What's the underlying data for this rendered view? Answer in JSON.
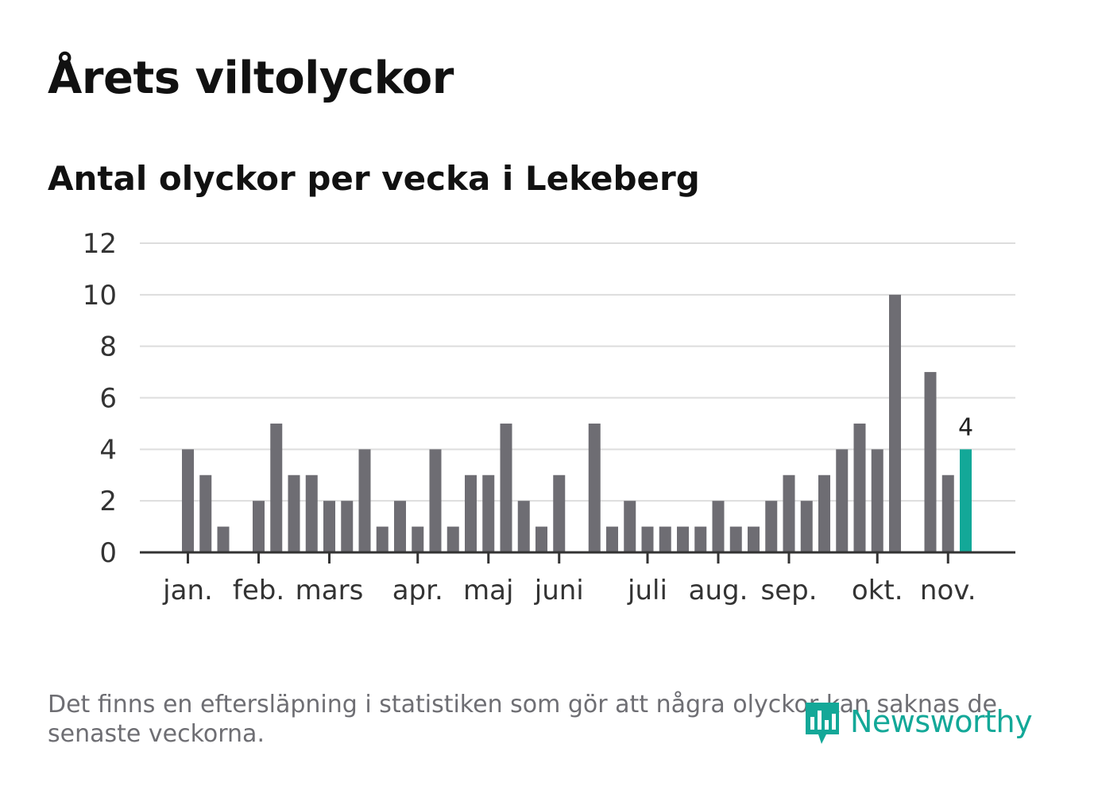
{
  "title": "Årets viltolyckor",
  "subtitle": "Antal olyckor per vecka i Lekeberg",
  "note": "Det finns en eftersläpning i statistiken som gör att några olyckor kan saknas de senaste veckorna.",
  "brand": {
    "name": "Newsworthy",
    "icon": "newsworthy-logo-icon"
  },
  "colors": {
    "bar": "#6e6d73",
    "highlight": "#13a898",
    "grid": "#dddddd",
    "axis": "#333333",
    "text": "#333333"
  },
  "chart_data": {
    "type": "bar",
    "title": "Antal olyckor per vecka i Lekeberg",
    "xlabel": "",
    "ylabel": "",
    "ylim": [
      0,
      12
    ],
    "yticks": [
      0,
      2,
      4,
      6,
      8,
      10,
      12
    ],
    "weeks": [
      1,
      2,
      3,
      4,
      5,
      6,
      7,
      8,
      9,
      10,
      11,
      12,
      13,
      14,
      15,
      16,
      17,
      18,
      19,
      20,
      21,
      22,
      23,
      24,
      25,
      26,
      27,
      28,
      29,
      30,
      31,
      32,
      33,
      34,
      35,
      36,
      37,
      38,
      39,
      40,
      41,
      42,
      43,
      44,
      45,
      46
    ],
    "values": [
      4,
      3,
      1,
      0,
      2,
      5,
      3,
      3,
      2,
      2,
      4,
      1,
      2,
      1,
      4,
      1,
      3,
      3,
      5,
      2,
      1,
      3,
      0,
      5,
      1,
      2,
      1,
      1,
      1,
      1,
      2,
      1,
      1,
      2,
      3,
      2,
      3,
      4,
      5,
      4,
      10,
      0,
      7,
      3,
      4,
      0
    ],
    "highlight_week": 45,
    "highlight_label": "4",
    "month_ticks": [
      {
        "label": "jan.",
        "week": 1
      },
      {
        "label": "feb.",
        "week": 5
      },
      {
        "label": "mars",
        "week": 9
      },
      {
        "label": "apr.",
        "week": 14
      },
      {
        "label": "maj",
        "week": 18
      },
      {
        "label": "juni",
        "week": 22
      },
      {
        "label": "juli",
        "week": 27
      },
      {
        "label": "aug.",
        "week": 31
      },
      {
        "label": "sep.",
        "week": 35
      },
      {
        "label": "okt.",
        "week": 40
      },
      {
        "label": "nov.",
        "week": 44
      }
    ],
    "grid": true,
    "legend": "none"
  }
}
